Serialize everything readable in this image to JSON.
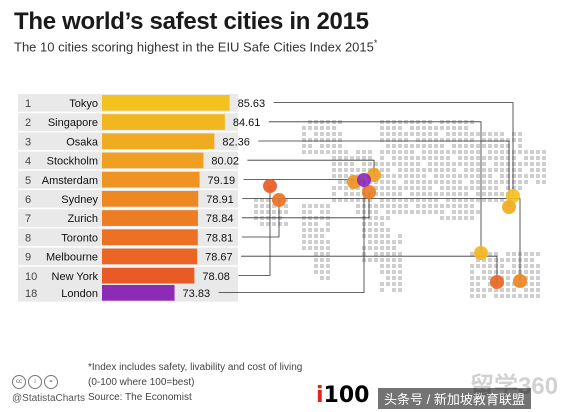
{
  "title": "The world’s safest cities in 2015",
  "subtitle": "The 10 cities scoring highest in the EIU Safe Cities Index 2015",
  "subtitle_mark": "*",
  "footnote": {
    "line1": "*Index includes safety, livability and cost of living",
    "line2": "(0-100 where 100=best)",
    "line3": "Source: The Economist"
  },
  "footer": {
    "cc_icons": [
      "cc",
      "i",
      "="
    ],
    "statista": "@StatistaCharts",
    "logo_prefix": "i",
    "logo_main": "100",
    "watermark_small": "头条号 / 新加坡教育联盟",
    "watermark_big": "留学360"
  },
  "colors": {
    "bar_top": "#f3c21f",
    "bar_bottom": "#ea5a25",
    "london": "#8e2bb5",
    "row_bg": "#e9e9e9",
    "map_dots": "#cfcfcf",
    "leader_line": "#333333"
  },
  "chart_data": {
    "type": "bar",
    "orientation": "horizontal",
    "rows": [
      {
        "rank": "1",
        "city": "Tokyo",
        "value": 85.63
      },
      {
        "rank": "2",
        "city": "Singapore",
        "value": 84.61
      },
      {
        "rank": "3",
        "city": "Osaka",
        "value": 82.36
      },
      {
        "rank": "4",
        "city": "Stockholm",
        "value": 80.02
      },
      {
        "rank": "5",
        "city": "Amsterdam",
        "value": 79.19
      },
      {
        "rank": "6",
        "city": "Sydney",
        "value": 78.91
      },
      {
        "rank": "7",
        "city": "Zurich",
        "value": 78.84
      },
      {
        "rank": "8",
        "city": "Toronto",
        "value": 78.81
      },
      {
        "rank": "9",
        "city": "Melbourne",
        "value": 78.67
      },
      {
        "rank": "10",
        "city": "New York",
        "value": 78.08
      },
      {
        "rank": "...",
        "city": "",
        "value": null
      },
      {
        "rank": "18",
        "city": "London",
        "value": 73.83
      }
    ],
    "xlim": [
      60,
      90
    ],
    "map": "world dot map with city markers linked to bars"
  }
}
